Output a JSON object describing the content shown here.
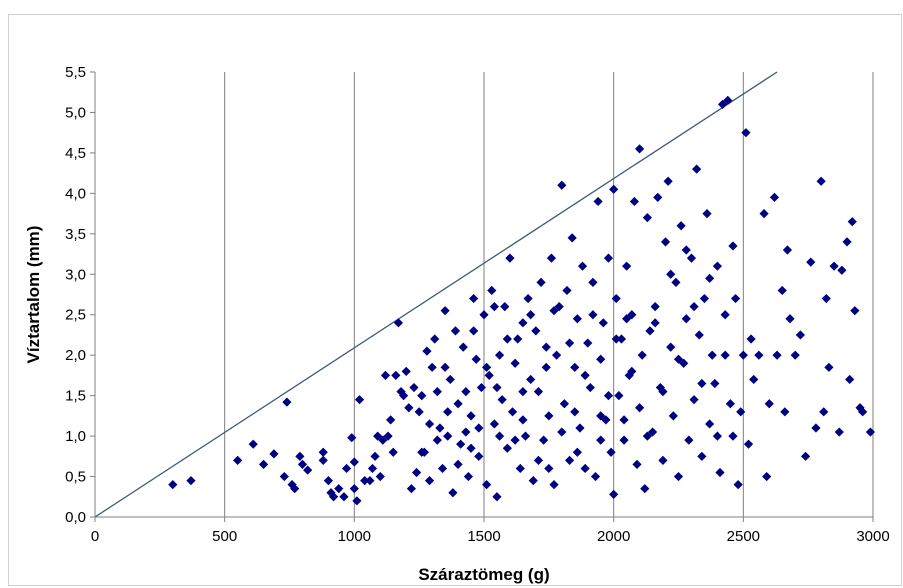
{
  "chart_data": {
    "type": "scatter",
    "xlabel": "Száraztömeg (g)",
    "ylabel": "Víztartalom (mm)",
    "xlim": [
      0,
      3000
    ],
    "ylim": [
      0,
      5.5
    ],
    "x_ticks": [
      0,
      500,
      1000,
      1500,
      2000,
      2500,
      3000
    ],
    "x_tick_labels": [
      "0",
      "500",
      "1000",
      "1500",
      "2000",
      "2500",
      "3000"
    ],
    "y_ticks": [
      0,
      0.5,
      1,
      1.5,
      2,
      2.5,
      3,
      3.5,
      4,
      4.5,
      5,
      5.5
    ],
    "y_tick_labels": [
      "0,0",
      "0,5",
      "1,0",
      "1,5",
      "2,0",
      "2,5",
      "3,0",
      "3,5",
      "4,0",
      "4,5",
      "5,0",
      "5,5"
    ],
    "grid": "vertical",
    "legend": "none",
    "marker": "diamond",
    "marker_color": "#000080",
    "reference_line": {
      "x": [
        0,
        2630
      ],
      "y": [
        0,
        5.5
      ],
      "color": "#3a5a7a"
    },
    "points": [
      [
        300,
        0.4
      ],
      [
        370,
        0.45
      ],
      [
        550,
        0.7
      ],
      [
        610,
        0.9
      ],
      [
        650,
        0.65
      ],
      [
        690,
        0.78
      ],
      [
        730,
        0.5
      ],
      [
        740,
        1.42
      ],
      [
        760,
        0.4
      ],
      [
        770,
        0.35
      ],
      [
        790,
        0.75
      ],
      [
        800,
        0.65
      ],
      [
        820,
        0.58
      ],
      [
        880,
        0.8
      ],
      [
        880,
        0.7
      ],
      [
        900,
        0.45
      ],
      [
        910,
        0.3
      ],
      [
        920,
        0.25
      ],
      [
        940,
        0.35
      ],
      [
        960,
        0.25
      ],
      [
        970,
        0.6
      ],
      [
        990,
        0.98
      ],
      [
        1000,
        0.35
      ],
      [
        1000,
        0.68
      ],
      [
        1010,
        0.2
      ],
      [
        1020,
        1.45
      ],
      [
        1040,
        0.45
      ],
      [
        1060,
        0.45
      ],
      [
        1070,
        0.6
      ],
      [
        1080,
        0.75
      ],
      [
        1090,
        1.0
      ],
      [
        1100,
        0.5
      ],
      [
        1110,
        0.95
      ],
      [
        1120,
        1.75
      ],
      [
        1130,
        1.0
      ],
      [
        1140,
        1.2
      ],
      [
        1150,
        0.8
      ],
      [
        1160,
        1.75
      ],
      [
        1170,
        2.4
      ],
      [
        1180,
        1.55
      ],
      [
        1190,
        1.5
      ],
      [
        1200,
        1.8
      ],
      [
        1210,
        1.35
      ],
      [
        1220,
        0.35
      ],
      [
        1230,
        1.6
      ],
      [
        1240,
        0.55
      ],
      [
        1250,
        1.3
      ],
      [
        1260,
        1.5
      ],
      [
        1270,
        0.8
      ],
      [
        1280,
        2.05
      ],
      [
        1290,
        1.15
      ],
      [
        1300,
        1.85
      ],
      [
        1310,
        2.2
      ],
      [
        1320,
        0.95
      ],
      [
        1330,
        1.1
      ],
      [
        1340,
        0.6
      ],
      [
        1350,
        2.55
      ],
      [
        1360,
        1.0
      ],
      [
        1370,
        1.7
      ],
      [
        1380,
        0.3
      ],
      [
        1390,
        2.3
      ],
      [
        1400,
        1.4
      ],
      [
        1410,
        0.9
      ],
      [
        1420,
        2.1
      ],
      [
        1430,
        1.05
      ],
      [
        1440,
        0.5
      ],
      [
        1450,
        1.25
      ],
      [
        1460,
        2.7
      ],
      [
        1470,
        1.95
      ],
      [
        1480,
        0.75
      ],
      [
        1490,
        1.6
      ],
      [
        1500,
        2.5
      ],
      [
        1510,
        0.4
      ],
      [
        1520,
        1.75
      ],
      [
        1530,
        2.8
      ],
      [
        1540,
        1.15
      ],
      [
        1550,
        0.25
      ],
      [
        1560,
        2.0
      ],
      [
        1570,
        1.45
      ],
      [
        1580,
        2.6
      ],
      [
        1590,
        0.85
      ],
      [
        1600,
        3.2
      ],
      [
        1610,
        1.3
      ],
      [
        1620,
        1.9
      ],
      [
        1630,
        2.2
      ],
      [
        1640,
        0.6
      ],
      [
        1650,
        2.4
      ],
      [
        1660,
        1.0
      ],
      [
        1670,
        2.7
      ],
      [
        1680,
        1.7
      ],
      [
        1690,
        0.45
      ],
      [
        1700,
        2.3
      ],
      [
        1710,
        1.55
      ],
      [
        1720,
        2.9
      ],
      [
        1730,
        0.95
      ],
      [
        1740,
        2.1
      ],
      [
        1750,
        1.25
      ],
      [
        1760,
        3.2
      ],
      [
        1770,
        0.4
      ],
      [
        1780,
        2.0
      ],
      [
        1790,
        2.6
      ],
      [
        1800,
        4.1
      ],
      [
        1810,
        1.4
      ],
      [
        1820,
        2.8
      ],
      [
        1830,
        0.7
      ],
      [
        1840,
        3.45
      ],
      [
        1850,
        1.85
      ],
      [
        1860,
        2.45
      ],
      [
        1870,
        1.1
      ],
      [
        1880,
        3.1
      ],
      [
        1890,
        0.6
      ],
      [
        1900,
        2.15
      ],
      [
        1910,
        1.6
      ],
      [
        1920,
        2.9
      ],
      [
        1930,
        0.5
      ],
      [
        1940,
        3.9
      ],
      [
        1950,
        1.95
      ],
      [
        1960,
        2.4
      ],
      [
        1970,
        1.2
      ],
      [
        1980,
        3.2
      ],
      [
        1990,
        0.8
      ],
      [
        2000,
        4.05
      ],
      [
        2000,
        0.28
      ],
      [
        2010,
        2.7
      ],
      [
        2020,
        1.5
      ],
      [
        2030,
        2.2
      ],
      [
        2040,
        0.95
      ],
      [
        2050,
        3.1
      ],
      [
        2060,
        1.75
      ],
      [
        2070,
        2.5
      ],
      [
        2080,
        3.9
      ],
      [
        2090,
        0.65
      ],
      [
        2100,
        4.55
      ],
      [
        2100,
        1.35
      ],
      [
        2110,
        2.0
      ],
      [
        2120,
        0.35
      ],
      [
        2130,
        3.7
      ],
      [
        2140,
        2.3
      ],
      [
        2150,
        1.05
      ],
      [
        2160,
        2.6
      ],
      [
        2170,
        3.95
      ],
      [
        2180,
        1.6
      ],
      [
        2190,
        0.7
      ],
      [
        2200,
        3.4
      ],
      [
        2210,
        4.15
      ],
      [
        2220,
        2.1
      ],
      [
        2230,
        1.25
      ],
      [
        2240,
        2.9
      ],
      [
        2250,
        0.5
      ],
      [
        2260,
        3.6
      ],
      [
        2270,
        1.9
      ],
      [
        2280,
        2.45
      ],
      [
        2290,
        0.95
      ],
      [
        2300,
        3.2
      ],
      [
        2310,
        1.45
      ],
      [
        2320,
        4.3
      ],
      [
        2330,
        2.25
      ],
      [
        2340,
        0.75
      ],
      [
        2350,
        2.7
      ],
      [
        2360,
        3.75
      ],
      [
        2370,
        1.15
      ],
      [
        2380,
        2.0
      ],
      [
        2390,
        1.65
      ],
      [
        2400,
        3.1
      ],
      [
        2410,
        0.55
      ],
      [
        2420,
        5.1
      ],
      [
        2430,
        2.5
      ],
      [
        2440,
        5.15
      ],
      [
        2450,
        1.4
      ],
      [
        2460,
        3.35
      ],
      [
        2470,
        2.7
      ],
      [
        2480,
        0.4
      ],
      [
        2490,
        1.3
      ],
      [
        2500,
        2.0
      ],
      [
        2510,
        4.75
      ],
      [
        2520,
        0.9
      ],
      [
        2530,
        2.2
      ],
      [
        2540,
        1.7
      ],
      [
        2560,
        2.0
      ],
      [
        2580,
        3.75
      ],
      [
        2590,
        0.5
      ],
      [
        2600,
        1.4
      ],
      [
        2620,
        3.95
      ],
      [
        2630,
        2.0
      ],
      [
        2650,
        2.8
      ],
      [
        2660,
        1.3
      ],
      [
        2670,
        3.3
      ],
      [
        2680,
        2.45
      ],
      [
        2700,
        2.0
      ],
      [
        2720,
        2.25
      ],
      [
        2740,
        0.75
      ],
      [
        2760,
        3.15
      ],
      [
        2780,
        1.1
      ],
      [
        2800,
        4.15
      ],
      [
        2810,
        1.3
      ],
      [
        2820,
        2.7
      ],
      [
        2830,
        1.85
      ],
      [
        2850,
        3.1
      ],
      [
        2870,
        1.05
      ],
      [
        2880,
        3.05
      ],
      [
        2900,
        3.4
      ],
      [
        2910,
        1.7
      ],
      [
        2920,
        3.65
      ],
      [
        2930,
        2.55
      ],
      [
        2950,
        1.35
      ],
      [
        2960,
        1.3
      ],
      [
        2990,
        1.05
      ],
      [
        1260,
        0.8
      ],
      [
        1290,
        0.45
      ],
      [
        1320,
        1.55
      ],
      [
        1360,
        1.3
      ],
      [
        1400,
        0.65
      ],
      [
        1430,
        1.55
      ],
      [
        1460,
        2.3
      ],
      [
        1480,
        1.1
      ],
      [
        1510,
        1.85
      ],
      [
        1540,
        2.6
      ],
      [
        1560,
        1.0
      ],
      [
        1590,
        2.2
      ],
      [
        1620,
        0.95
      ],
      [
        1650,
        1.55
      ],
      [
        1680,
        2.5
      ],
      [
        1710,
        0.7
      ],
      [
        1740,
        1.85
      ],
      [
        1770,
        2.55
      ],
      [
        1800,
        1.05
      ],
      [
        1830,
        2.15
      ],
      [
        1860,
        0.8
      ],
      [
        1890,
        1.75
      ],
      [
        1920,
        2.5
      ],
      [
        1950,
        0.95
      ],
      [
        1980,
        1.5
      ],
      [
        2010,
        2.2
      ],
      [
        2040,
        1.2
      ],
      [
        2070,
        1.8
      ],
      [
        2130,
        1.0
      ],
      [
        2160,
        2.4
      ],
      [
        2190,
        1.55
      ],
      [
        2220,
        3.0
      ],
      [
        2250,
        1.95
      ],
      [
        2280,
        3.3
      ],
      [
        2310,
        2.6
      ],
      [
        2340,
        1.65
      ],
      [
        2370,
        2.95
      ],
      [
        2400,
        1.0
      ],
      [
        2430,
        2.0
      ],
      [
        2460,
        1.0
      ],
      [
        1350,
        1.85
      ],
      [
        1450,
        0.85
      ],
      [
        1550,
        1.6
      ],
      [
        1650,
        1.2
      ],
      [
        1750,
        0.6
      ],
      [
        1850,
        1.3
      ],
      [
        1950,
        1.25
      ],
      [
        2050,
        2.45
      ]
    ]
  }
}
